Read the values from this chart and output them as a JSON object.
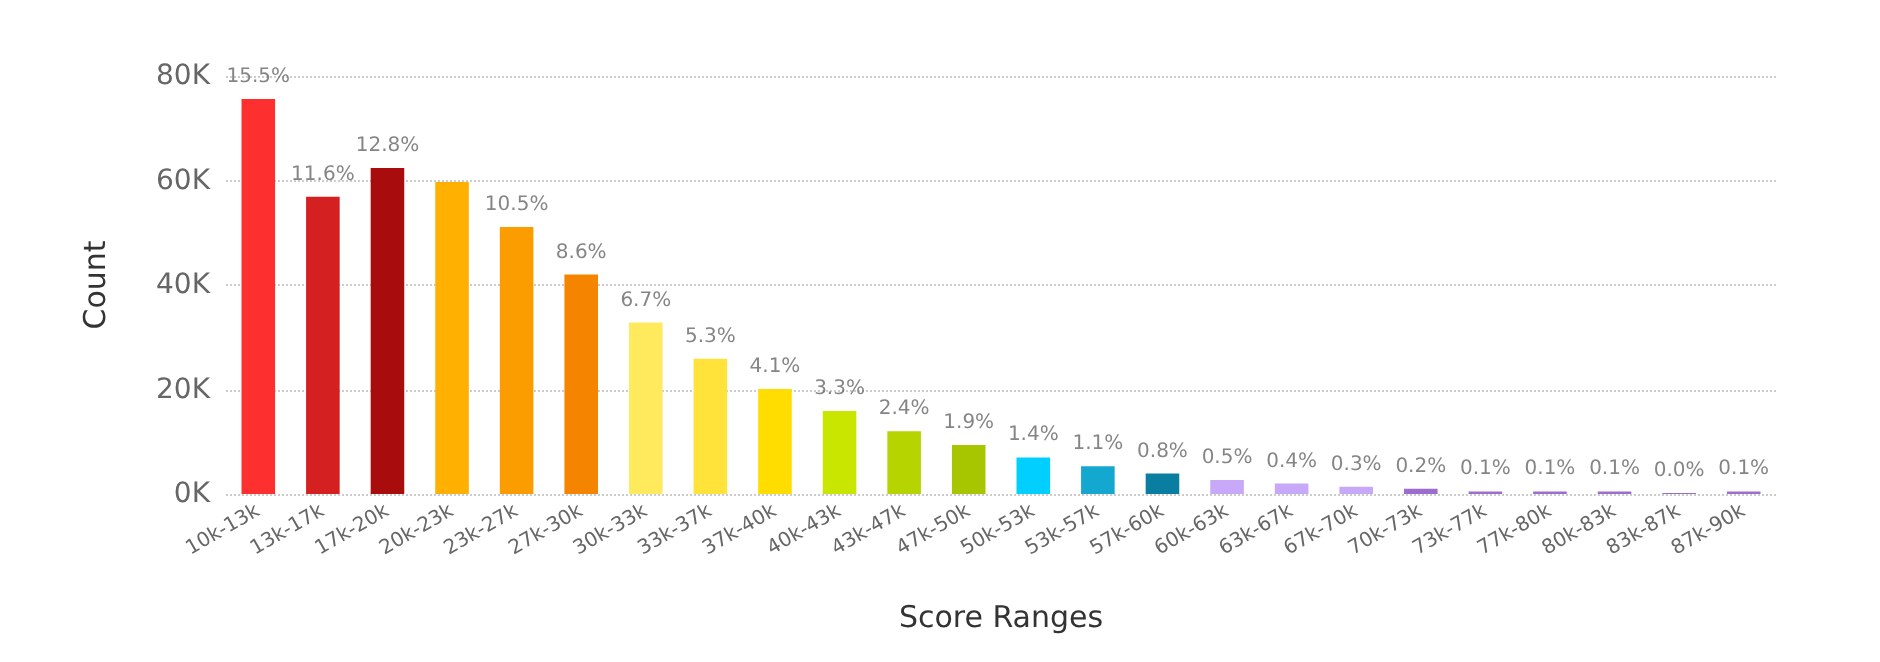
{
  "chart_data": {
    "type": "bar",
    "xlabel": "Score Ranges",
    "ylabel": "Count",
    "categories": [
      "10k-13k",
      "13k-17k",
      "17k-20k",
      "20k-23k",
      "23k-27k",
      "27k-30k",
      "30k-33k",
      "33k-37k",
      "37k-40k",
      "40k-43k",
      "43k-47k",
      "47k-50k",
      "50k-53k",
      "53k-57k",
      "57k-60k",
      "60k-63k",
      "63k-67k",
      "67k-70k",
      "70k-73k",
      "73k-77k",
      "77k-80k",
      "80k-83k",
      "83k-87k",
      "87k-90k"
    ],
    "values": [
      75600,
      56900,
      62400,
      59700,
      51100,
      42000,
      32800,
      25900,
      20100,
      15900,
      12000,
      9400,
      7000,
      5300,
      3900,
      2700,
      2000,
      1400,
      1000,
      500,
      500,
      500,
      200,
      500
    ],
    "colors": [
      "#fd2f2f",
      "#d42020",
      "#a80c0c",
      "#ffb000",
      "#fb9c00",
      "#f58500",
      "#ffe95c",
      "#ffe23a",
      "#ffdd00",
      "#c8e600",
      "#b5d400",
      "#a8c600",
      "#00cfff",
      "#14a8d0",
      "#0a7ea0",
      "#c8a8f8",
      "#c8a8f8",
      "#c8a8f8",
      "#9c6cd0",
      "#9c6cd0",
      "#9c6cd0",
      "#9c6cd0",
      "#9c6cd0",
      "#9c6cd0"
    ],
    "annotations": [
      {
        "text": "15.5%",
        "x": "10k-13k",
        "y": 75600
      },
      {
        "text": "11.6%",
        "x": "13k-17k",
        "y": 56900
      },
      {
        "text": "12.8%",
        "x": "17k-20k",
        "y": 62400
      },
      {
        "text": "10.5%",
        "x": "23k-27k",
        "y": 51100
      },
      {
        "text": "8.6%",
        "x": "27k-30k",
        "y": 42000
      },
      {
        "text": "6.7%",
        "x": "30k-33k",
        "y": 32800
      },
      {
        "text": "5.3%",
        "x": "33k-37k",
        "y": 25900
      },
      {
        "text": "4.1%",
        "x": "37k-40k",
        "y": 20100
      },
      {
        "text": "3.3%",
        "x": "40k-43k",
        "y": 15900
      },
      {
        "text": "2.4%",
        "x": "43k-47k",
        "y": 12000
      },
      {
        "text": "1.9%",
        "x": "47k-50k",
        "y": 9400
      },
      {
        "text": "1.4%",
        "x": "50k-53k",
        "y": 7000
      },
      {
        "text": "1.1%",
        "x": "53k-57k",
        "y": 5300
      },
      {
        "text": "0.8%",
        "x": "57k-60k",
        "y": 3900
      },
      {
        "text": "0.5%",
        "x": "60k-63k",
        "y": 2700
      },
      {
        "text": "0.4%",
        "x": "63k-67k",
        "y": 2000
      },
      {
        "text": "0.3%",
        "x": "67k-70k",
        "y": 1400
      },
      {
        "text": "0.2%",
        "x": "70k-73k",
        "y": 1000
      },
      {
        "text": "0.1%",
        "x": "73k-77k",
        "y": 500
      },
      {
        "text": "0.1%",
        "x": "77k-80k",
        "y": 500
      },
      {
        "text": "0.1%",
        "x": "80k-83k",
        "y": 500
      },
      {
        "text": "0.0%",
        "x": "83k-87k",
        "y": 200
      },
      {
        "text": "0.1%",
        "x": "87k-90k",
        "y": 500
      }
    ],
    "ylim": [
      0,
      80000
    ],
    "yticks": [
      {
        "value": 0,
        "label": "0K"
      },
      {
        "value": 20000,
        "label": "20K"
      },
      {
        "value": 40000,
        "label": "40K"
      },
      {
        "value": 60000,
        "label": "60K"
      },
      {
        "value": 80000,
        "label": "80K"
      }
    ],
    "grid": "y"
  }
}
